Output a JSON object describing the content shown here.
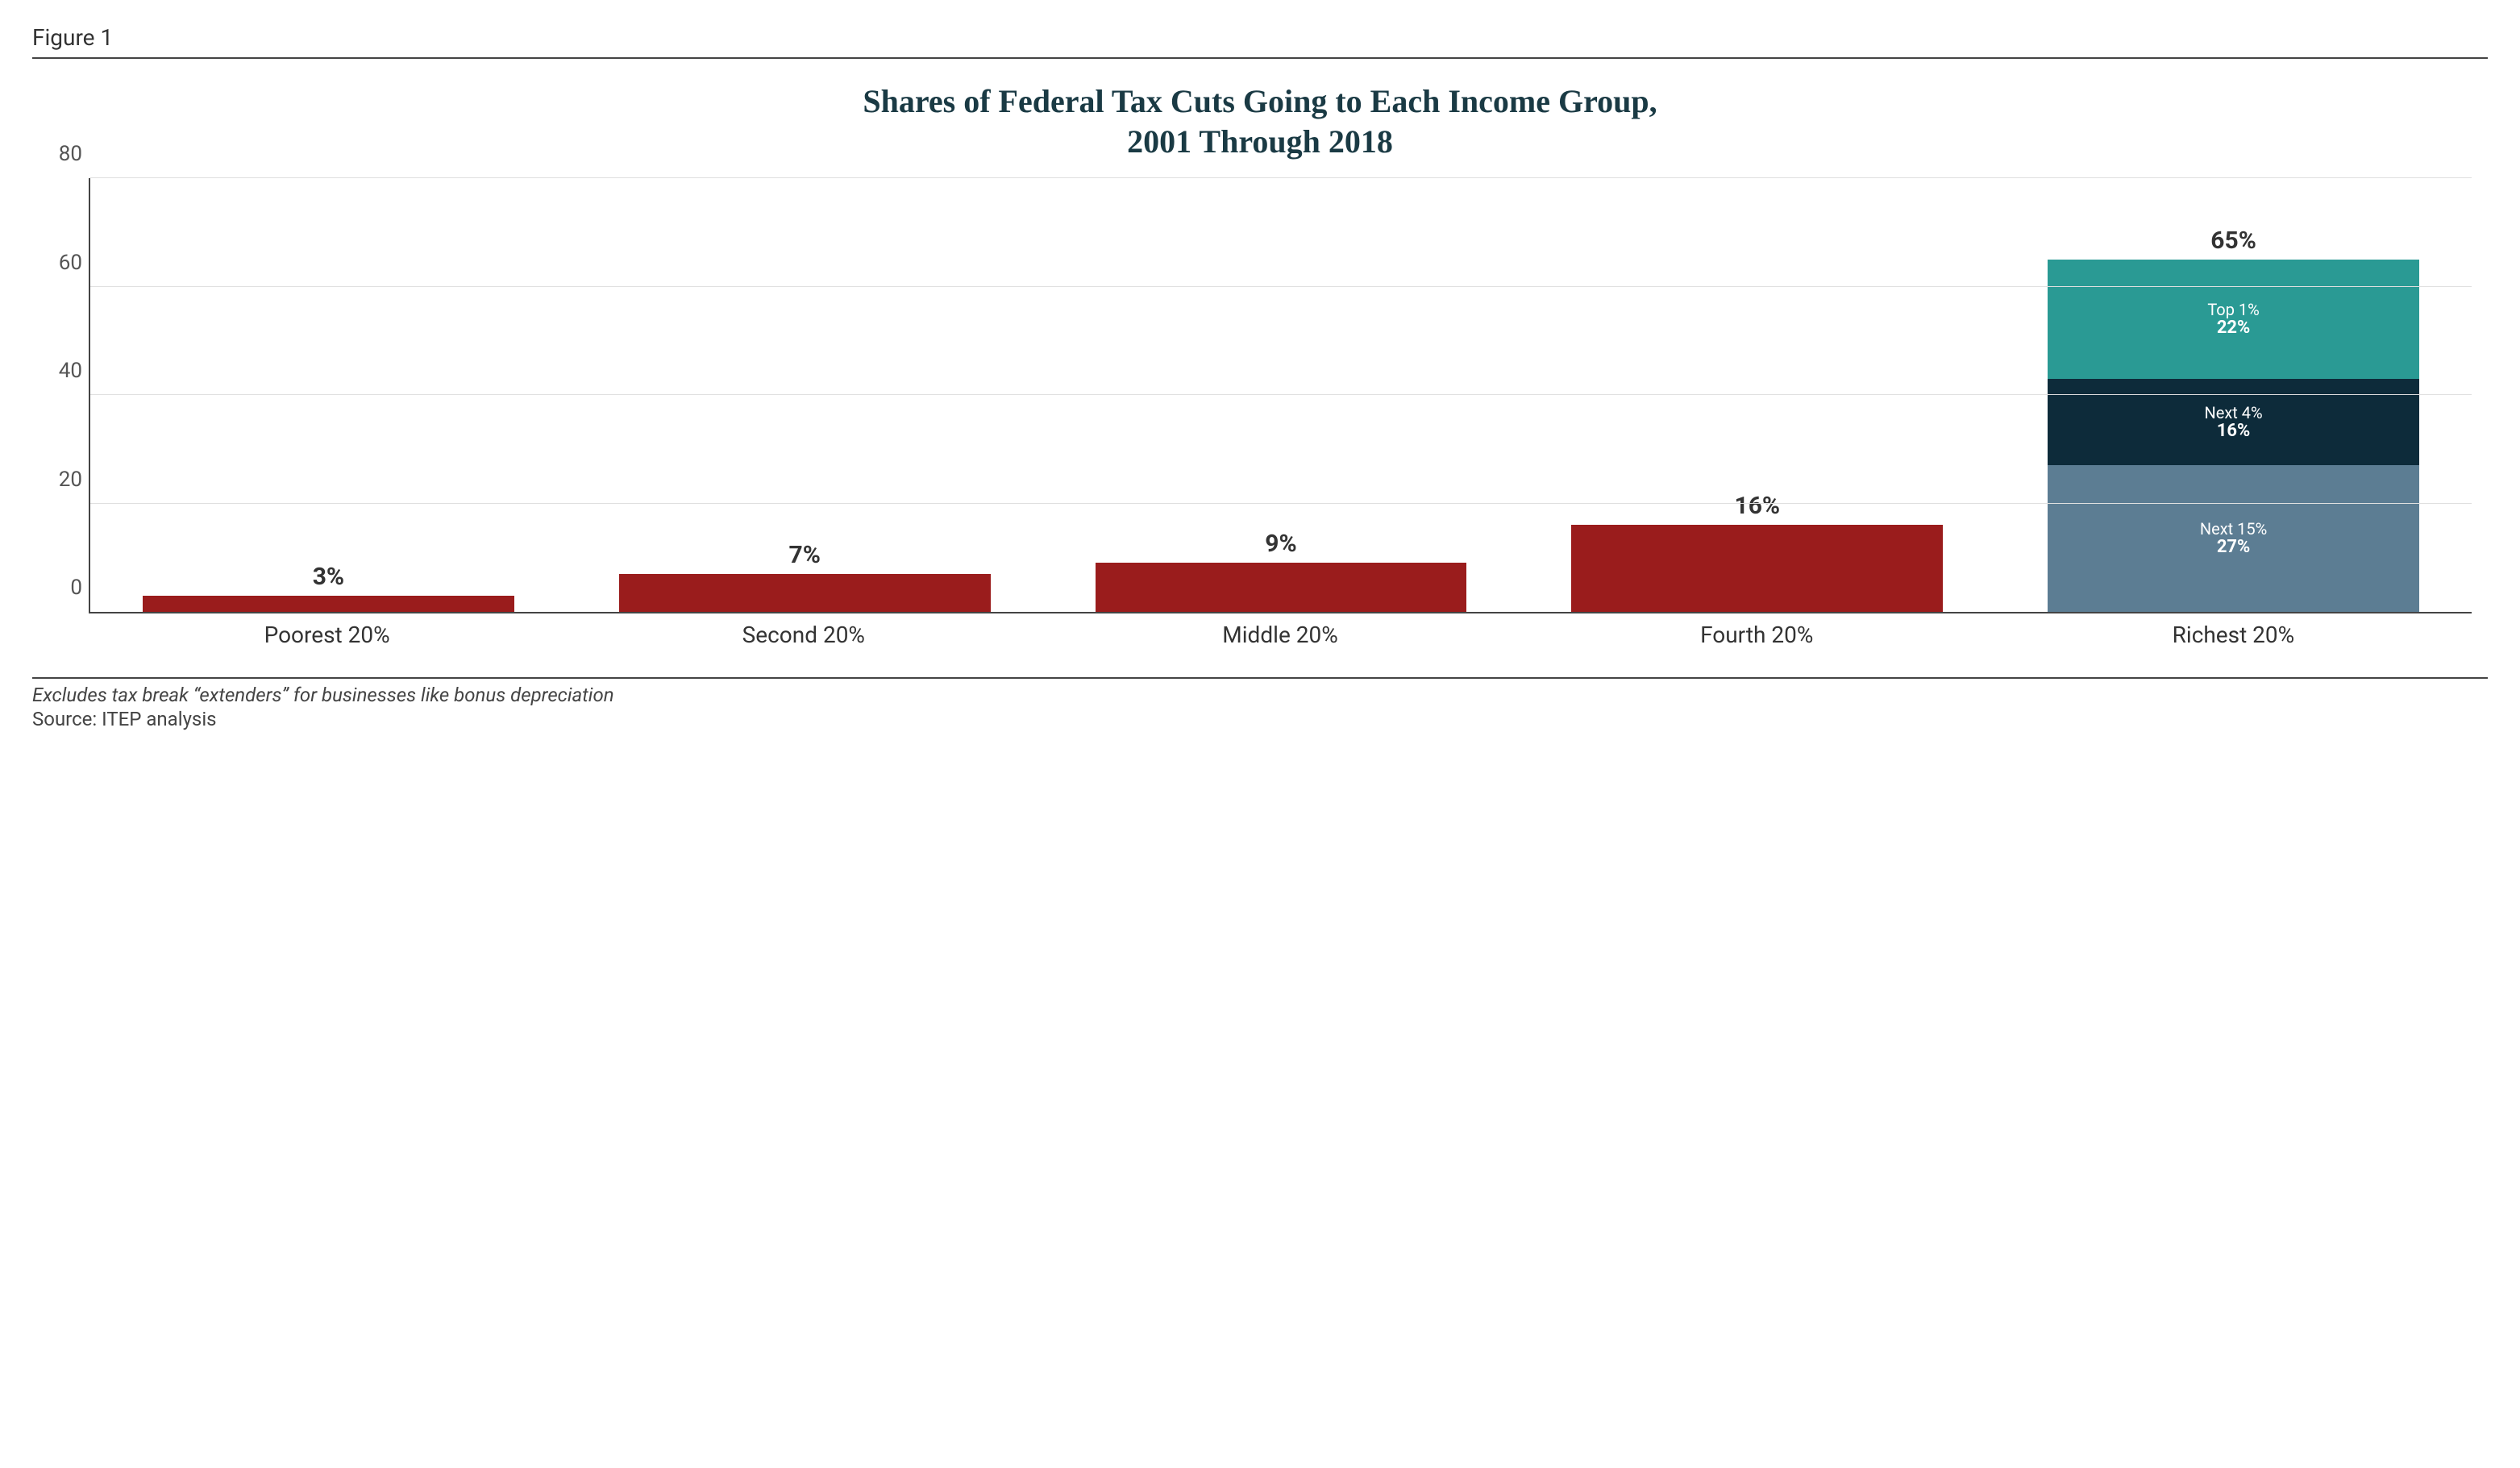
{
  "figure_label": "Figure 1",
  "title": {
    "line1": "Shares of Federal Tax Cuts Going to Each Income Group,",
    "line2": "2001 Through 2018",
    "color": "#1a3a44",
    "fontsize": 40
  },
  "chart": {
    "type": "bar",
    "ylim": [
      0,
      80
    ],
    "ytick_step": 20,
    "yticks": [
      0,
      20,
      40,
      60,
      80
    ],
    "grid_color": "#e0e0e0",
    "axis_color": "#444444",
    "background_color": "#ffffff",
    "bar_width_pct": 78,
    "value_fontsize": 30,
    "segment_label_fontsize": 20,
    "segment_value_fontsize": 22,
    "tick_fontsize": 26,
    "xlabel_fontsize": 28,
    "categories": [
      "Poorest 20%",
      "Second 20%",
      "Middle 20%",
      "Fourth 20%",
      "Richest 20%"
    ],
    "bars": [
      {
        "total_label": "3%",
        "segments": [
          {
            "value": 3,
            "color": "#9a1c1c"
          }
        ]
      },
      {
        "total_label": "7%",
        "segments": [
          {
            "value": 7,
            "color": "#9a1c1c"
          }
        ]
      },
      {
        "total_label": "9%",
        "segments": [
          {
            "value": 9,
            "color": "#9a1c1c"
          }
        ]
      },
      {
        "total_label": "16%",
        "segments": [
          {
            "value": 16,
            "color": "#9a1c1c"
          }
        ]
      },
      {
        "total_label": "65%",
        "segments": [
          {
            "value": 27,
            "color": "#5c7d93",
            "label": "Next 15%",
            "value_label": "27%"
          },
          {
            "value": 16,
            "color": "#0d2b3a",
            "label": "Next 4%",
            "value_label": "16%"
          },
          {
            "value": 22,
            "color": "#2a9a94",
            "label": "Top 1%",
            "value_label": "22%"
          }
        ]
      }
    ]
  },
  "footnote": "Excludes tax break “extenders” for businesses like bonus depreciation",
  "source": "Source: ITEP analysis"
}
